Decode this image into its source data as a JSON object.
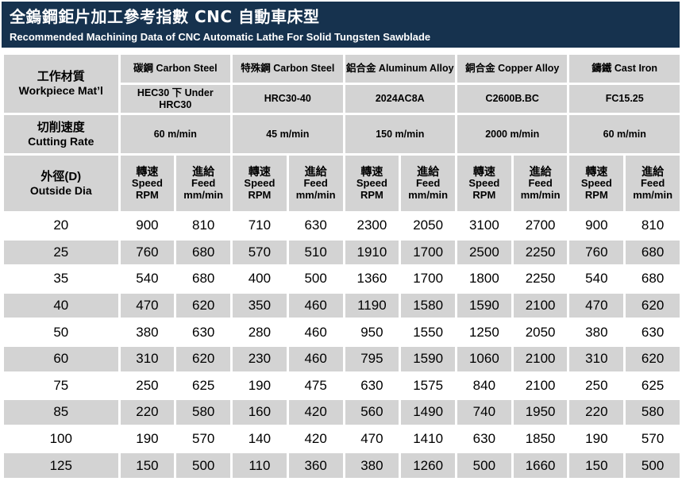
{
  "title_zh": "全鎢鋼鉅片加工參考指數 CNC 自動車床型",
  "title_en": "Recommended Machining Data of CNC Automatic Lathe For Solid Tungsten Sawblade",
  "row_labels": {
    "material_zh": "工作材質",
    "material_en": "Workpiece Mat’l",
    "cutting_zh": "切削速度",
    "cutting_en": "Cutting Rate",
    "dia_zh": "外徑(D)",
    "dia_en": "Outside Dia"
  },
  "materials": [
    {
      "name": "碳鋼  Carbon Steel",
      "grade": "HEC30 下 Under HRC30",
      "rate": "60 m/min"
    },
    {
      "name": "特殊鋼  Carbon Steel",
      "grade": "HRC30-40",
      "rate": "45 m/min"
    },
    {
      "name": "鋁合金  Aluminum Alloy",
      "grade": "2024AC8A",
      "rate": "150 m/min"
    },
    {
      "name": "銅合金  Copper Alloy",
      "grade": "C2600B.BC",
      "rate": "2000 m/min"
    },
    {
      "name": "鑄鐵  Cast Iron",
      "grade": "FC15.25",
      "rate": "60 m/min"
    }
  ],
  "sub_headers": {
    "speed_zh": "轉速",
    "speed_en": "Speed",
    "speed_unit": "RPM",
    "feed_zh": "進給",
    "feed_en": "Feed",
    "feed_unit": "mm/min"
  },
  "rows": [
    {
      "dia": "20",
      "values": [
        "900",
        "810",
        "710",
        "630",
        "2300",
        "2050",
        "3100",
        "2700",
        "900",
        "810"
      ]
    },
    {
      "dia": "25",
      "values": [
        "760",
        "680",
        "570",
        "510",
        "1910",
        "1700",
        "2500",
        "2250",
        "760",
        "680"
      ]
    },
    {
      "dia": "35",
      "values": [
        "540",
        "680",
        "400",
        "500",
        "1360",
        "1700",
        "1800",
        "2250",
        "540",
        "680"
      ]
    },
    {
      "dia": "40",
      "values": [
        "470",
        "620",
        "350",
        "460",
        "1190",
        "1580",
        "1590",
        "2100",
        "470",
        "620"
      ]
    },
    {
      "dia": "50",
      "values": [
        "380",
        "630",
        "280",
        "460",
        "950",
        "1550",
        "1250",
        "2050",
        "380",
        "630"
      ]
    },
    {
      "dia": "60",
      "values": [
        "310",
        "620",
        "230",
        "460",
        "795",
        "1590",
        "1060",
        "2100",
        "310",
        "620"
      ]
    },
    {
      "dia": "75",
      "values": [
        "250",
        "625",
        "190",
        "475",
        "630",
        "1575",
        "840",
        "2100",
        "250",
        "625"
      ]
    },
    {
      "dia": "85",
      "values": [
        "220",
        "580",
        "160",
        "420",
        "560",
        "1490",
        "740",
        "1950",
        "220",
        "580"
      ]
    },
    {
      "dia": "100",
      "values": [
        "190",
        "570",
        "140",
        "420",
        "470",
        "1410",
        "630",
        "1850",
        "190",
        "570"
      ]
    },
    {
      "dia": "125",
      "values": [
        "150",
        "500",
        "110",
        "360",
        "380",
        "1260",
        "500",
        "1660",
        "150",
        "500"
      ]
    }
  ],
  "colors": {
    "banner": "#16324e",
    "header_cell": "#d3d3d3",
    "zebra": "#d3d3d3"
  }
}
